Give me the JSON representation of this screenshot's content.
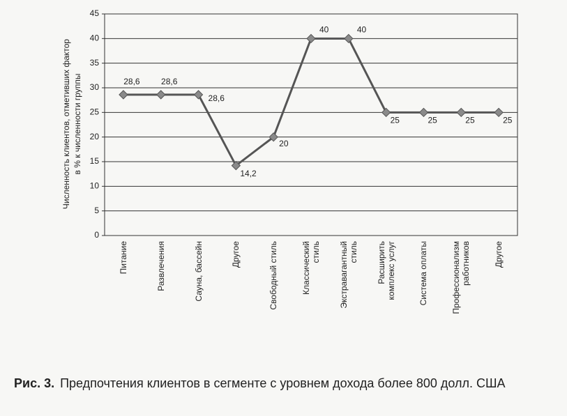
{
  "chart_data": {
    "type": "line",
    "ylabel_lines": [
      "Численность клиентов, отметивших фактор",
      "в % к численности группы"
    ],
    "categories": [
      "Питание",
      "Развлечения",
      "Сауна, бассейн",
      "Другое",
      "Свободный стиль",
      "Классический\nстиль",
      "Экстравагантный\nстиль",
      "Расширить\nкомплекс услуг",
      "Система оплаты",
      "Профессионализм\nработников",
      "Другое"
    ],
    "values": [
      28.6,
      28.6,
      28.6,
      14.2,
      20,
      40,
      40,
      25,
      25,
      25,
      25
    ],
    "value_labels": [
      "28,6",
      "28,6",
      "28,6",
      "14,2",
      "20",
      "40",
      "40",
      "25",
      "25",
      "25",
      "25"
    ],
    "color": "#555555",
    "marker_color": "#8a8a8a",
    "ylim": [
      0,
      45
    ],
    "yticks": [
      0,
      5,
      10,
      15,
      20,
      25,
      30,
      35,
      40,
      45
    ],
    "grid": true
  },
  "caption": {
    "label": "Рис. 3.",
    "text": "Предпочтения клиентов в сегменте с уровнем дохода более 800 долл. США"
  }
}
